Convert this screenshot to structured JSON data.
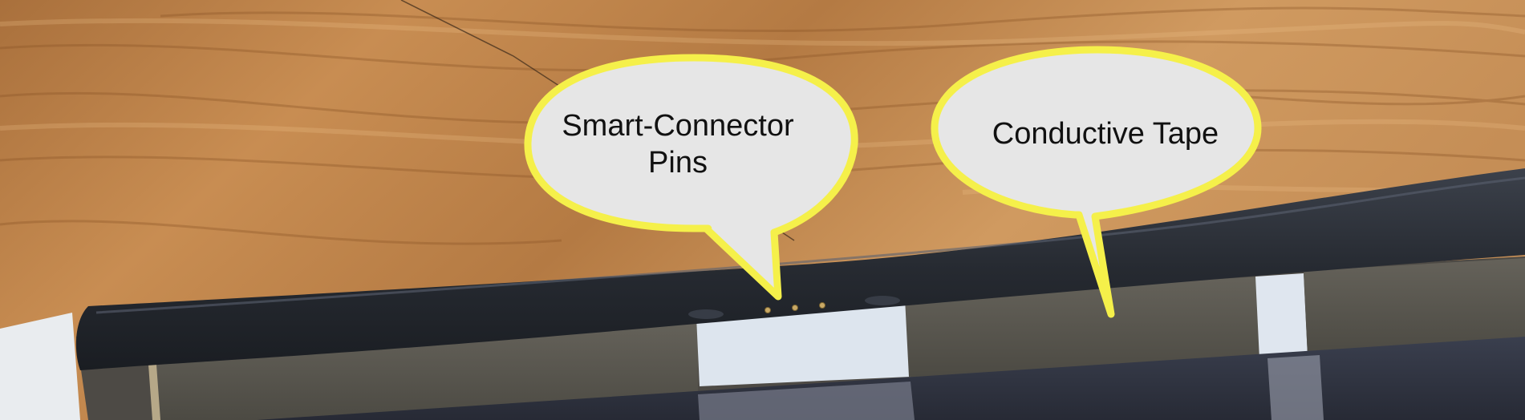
{
  "image": {
    "description_labels": {
      "callout_pins": "Smart-Connector\nPins",
      "callout_tape": "Conductive Tape"
    },
    "colors": {
      "callout_fill": "#e6e6e6",
      "callout_border": "#f5f04a",
      "wood_light": "#d8a266",
      "wood_dark": "#9c6330",
      "keyboard_edge": "#2b2f37",
      "tape_gray": "#5b584e",
      "tape_white": "#dfe6ef",
      "fabric_dark": "#2e3240"
    }
  }
}
